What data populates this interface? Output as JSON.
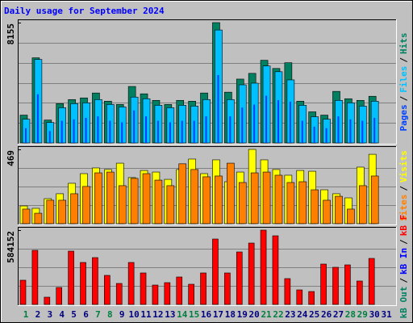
{
  "chart_data": [
    {
      "type": "bar",
      "title": "Daily usage for September 2024",
      "ylim": [
        0,
        8155
      ],
      "yticks": [
        8155
      ],
      "legend_separator": "/",
      "series": [
        {
          "name": "Hits",
          "color": "#008060",
          "values": [
            1886,
            5770,
            1553,
            2663,
            2940,
            3051,
            3384,
            2829,
            2607,
            3828,
            3329,
            2885,
            2607,
            2885,
            2829,
            3384,
            8155,
            3440,
            4327,
            4715,
            5603,
            5048,
            5437,
            2829,
            2108,
            1886,
            3495,
            2996,
            2885,
            3162,
            null
          ]
        },
        {
          "name": "Files",
          "color": "#00c0ff",
          "values": [
            1609,
            5659,
            1387,
            2386,
            2663,
            2718,
            2940,
            2607,
            2441,
            3107,
            2996,
            2552,
            2386,
            2552,
            2497,
            2940,
            7656,
            2940,
            3939,
            4050,
            5215,
            4827,
            4272,
            2552,
            1775,
            1609,
            2885,
            2718,
            2497,
            2829,
            null
          ]
        },
        {
          "name": "Pages",
          "color": "#0040ff",
          "values": [
            1000,
            3300,
            800,
            1500,
            1600,
            1700,
            1800,
            1500,
            1400,
            2200,
            1800,
            1500,
            1400,
            1500,
            1500,
            1800,
            4600,
            1800,
            2400,
            2600,
            3200,
            2900,
            2800,
            1500,
            1100,
            1000,
            1800,
            1600,
            1500,
            1700,
            null
          ]
        }
      ]
    },
    {
      "type": "bar",
      "ylim": [
        0,
        469
      ],
      "yticks": [
        469
      ],
      "legend_separator": "/",
      "series": [
        {
          "name": "Visits",
          "color": "#ffff00",
          "values": [
            112,
            97,
            158,
            189,
            255,
            316,
            352,
            342,
            382,
            291,
            336,
            326,
            280,
            342,
            408,
            316,
            403,
            265,
            326,
            469,
            403,
            342,
            306,
            336,
            331,
            214,
            189,
            163,
            357,
            438,
            null
          ]
        },
        {
          "name": "Sites",
          "color": "#ff8000",
          "values": [
            92,
            66,
            148,
            148,
            189,
            235,
            321,
            326,
            240,
            286,
            316,
            275,
            240,
            378,
            342,
            296,
            301,
            382,
            260,
            321,
            326,
            306,
            260,
            265,
            214,
            148,
            173,
            92,
            240,
            301,
            null
          ]
        }
      ]
    },
    {
      "type": "bar",
      "ylim": [
        0,
        584152
      ],
      "yticks": [
        584152
      ],
      "legend_separator": "/",
      "categories": [
        "1",
        "2",
        "3",
        "4",
        "5",
        "6",
        "7",
        "8",
        "9",
        "10",
        "11",
        "12",
        "13",
        "14",
        "15",
        "16",
        "17",
        "18",
        "19",
        "20",
        "21",
        "22",
        "23",
        "24",
        "25",
        "26",
        "27",
        "28",
        "29",
        "30",
        "31"
      ],
      "category_colors": [
        "#008040",
        "#000080",
        "#000080",
        "#000080",
        "#000080",
        "#000080",
        "#008040",
        "#008040",
        "#000080",
        "#000080",
        "#000080",
        "#000080",
        "#000080",
        "#008040",
        "#008040",
        "#000080",
        "#000080",
        "#000080",
        "#000080",
        "#000080",
        "#008040",
        "#008040",
        "#000080",
        "#000080",
        "#000080",
        "#000080",
        "#000080",
        "#008040",
        "#008040",
        "#000080",
        "#000080"
      ],
      "series": [
        {
          "name": "kB F",
          "color": "#ff0000",
          "values": [
            190484,
            425415,
            57146,
            133340,
            419066,
            330174,
            368270,
            228584,
            165090,
            330174,
            247630,
            152388,
            171437,
            215886,
            158737,
            247630,
            514312,
            247630,
            412717,
            482560,
            584152,
            539706,
            203184,
            114291,
            101592,
            317474,
            292076,
            311124,
            184135,
            361921,
            null
          ]
        },
        {
          "name": "kB In",
          "color": "#0000ff"
        },
        {
          "name": "kB Out",
          "color": "#008060"
        }
      ]
    }
  ]
}
